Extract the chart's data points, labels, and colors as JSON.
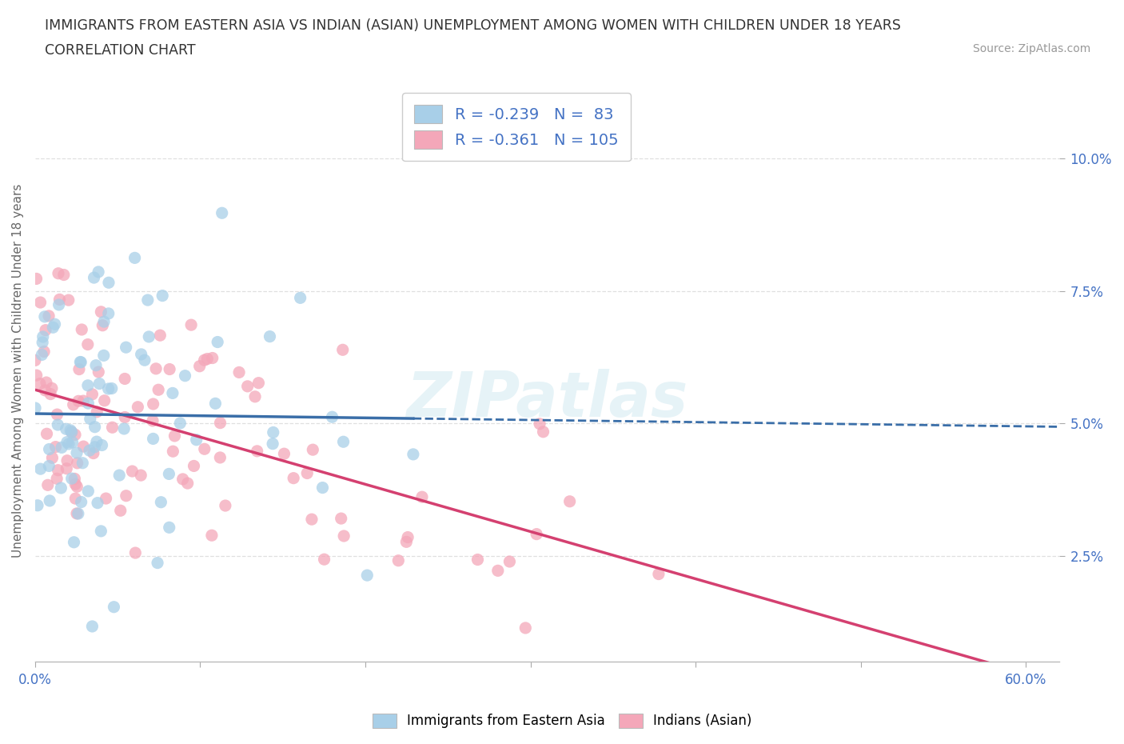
{
  "title_line1": "IMMIGRANTS FROM EASTERN ASIA VS INDIAN (ASIAN) UNEMPLOYMENT AMONG WOMEN WITH CHILDREN UNDER 18 YEARS",
  "title_line2": "CORRELATION CHART",
  "source": "Source: ZipAtlas.com",
  "ylabel": "Unemployment Among Women with Children Under 18 years",
  "xlim": [
    0.0,
    0.62
  ],
  "ylim": [
    0.005,
    0.115
  ],
  "ytick_positions": [
    0.025,
    0.05,
    0.075,
    0.1
  ],
  "ytick_labels": [
    "2.5%",
    "5.0%",
    "7.5%",
    "10.0%"
  ],
  "blue_color": "#a8cfe8",
  "pink_color": "#f4a7b9",
  "blue_line_color": "#3a6ea8",
  "pink_line_color": "#d44070",
  "R_blue": -0.239,
  "N_blue": 83,
  "R_pink": -0.361,
  "N_pink": 105,
  "series1_label": "Immigrants from Eastern Asia",
  "series2_label": "Indians (Asian)",
  "watermark": "ZIPatlas",
  "background_color": "#ffffff",
  "grid_color": "#e0e0e0",
  "seed_blue": 7,
  "seed_pink": 13,
  "marker_size": 120
}
